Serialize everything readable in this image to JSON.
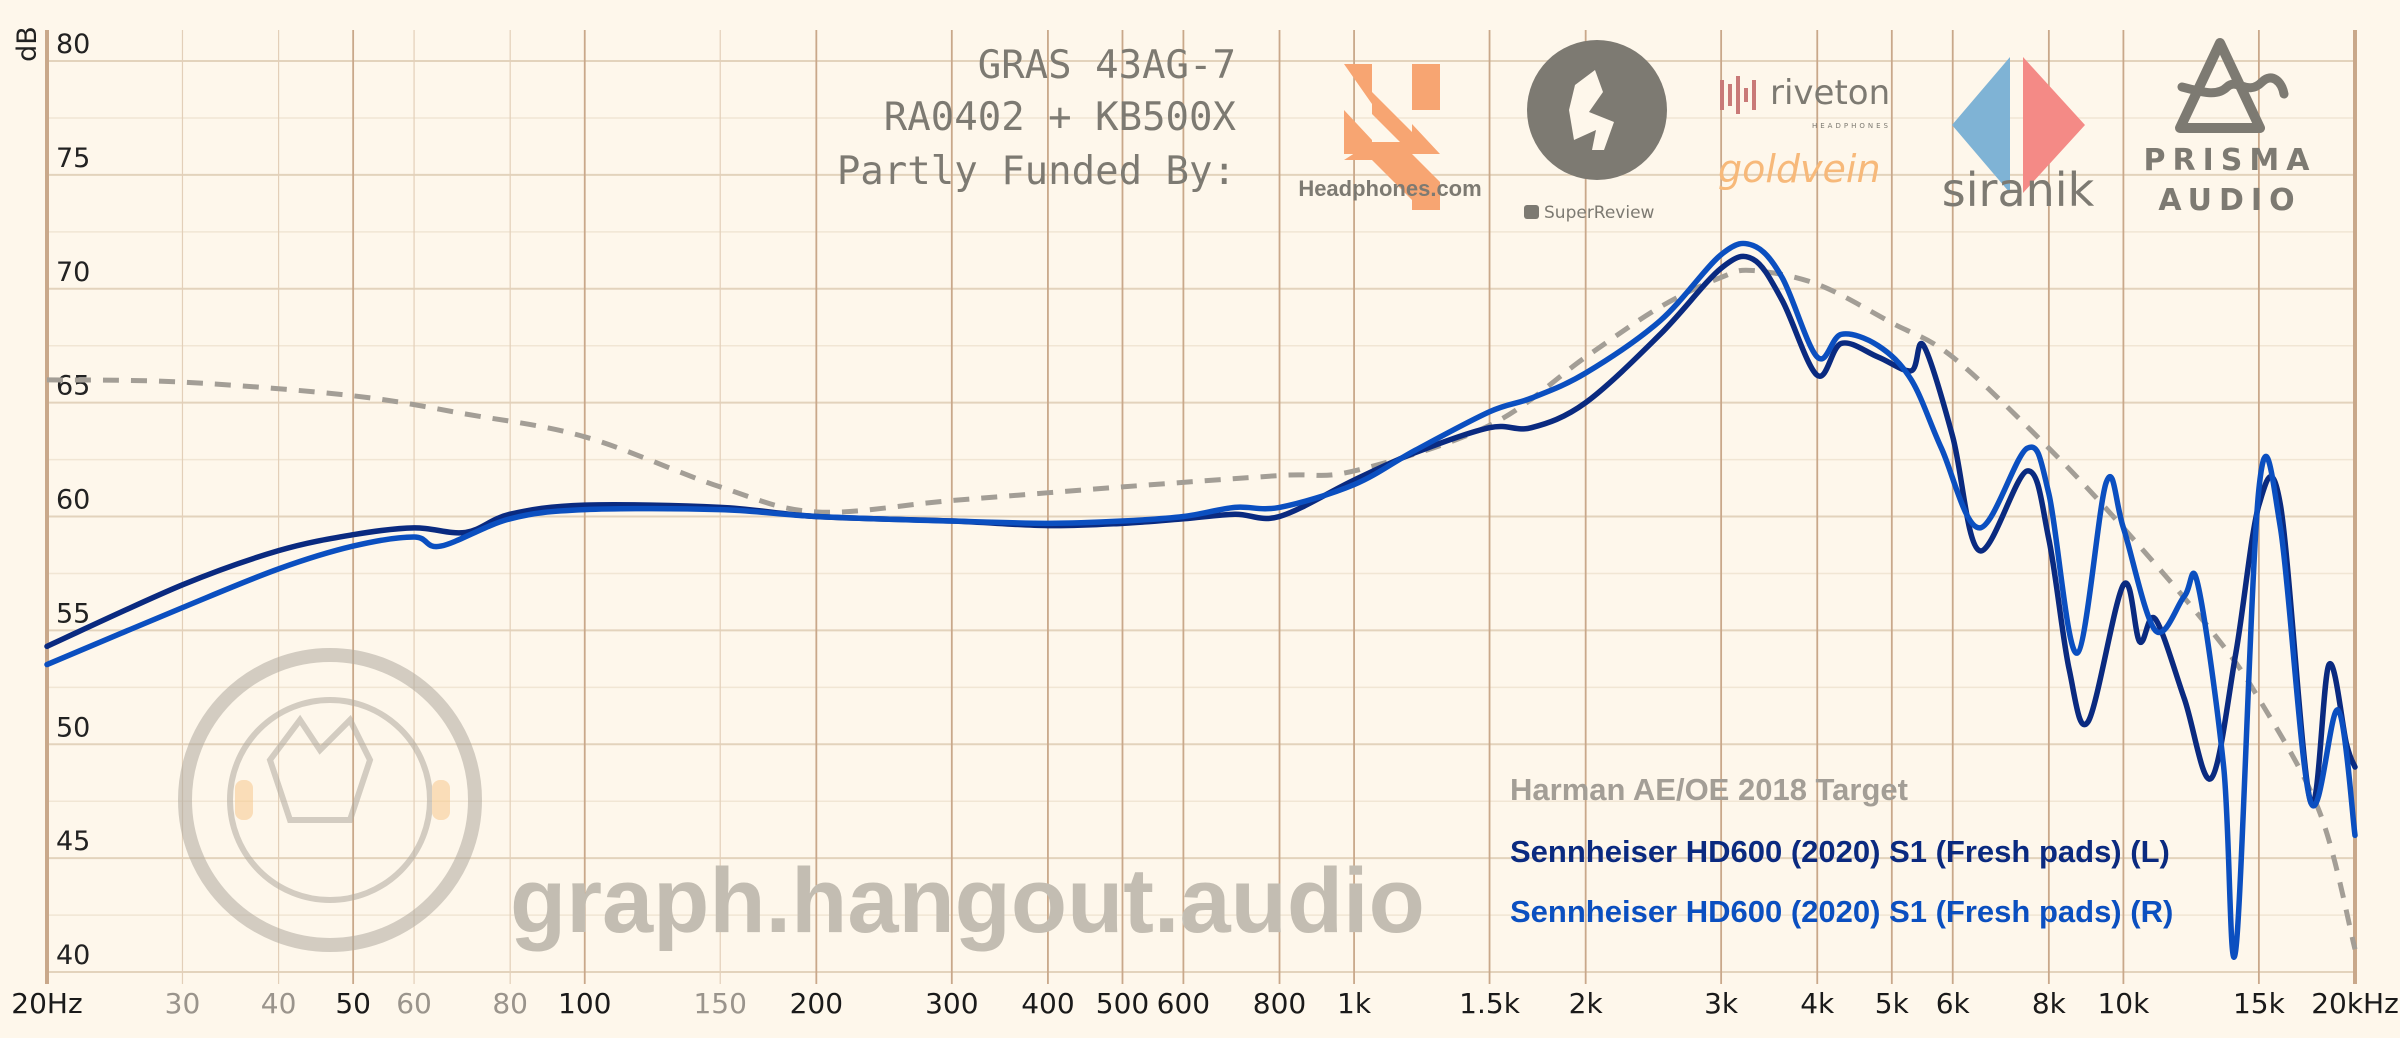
{
  "header": {
    "lines": [
      "GRAS 43AG-7",
      "RA0402 + KB500X",
      "Partly Funded By:"
    ]
  },
  "sponsors": [
    {
      "name": "Headphones.com",
      "icon": "headphones-com-logo",
      "color": "#f7a572"
    },
    {
      "name": "SuperReview",
      "icon": "superreview-logo",
      "color": "#7d7a72"
    },
    {
      "name": "riveton",
      "sub": "HEADPHONES",
      "icon": "riveton-logo",
      "color": "#c97a78"
    },
    {
      "name": "goldvein",
      "icon": "goldvein-logo",
      "color": "#f7b97a"
    },
    {
      "name": "siranik",
      "icon": "siranik-logo",
      "colors": [
        "#7fb3d5",
        "#f48a86"
      ]
    },
    {
      "name": "PRISMA AUDIO",
      "icon": "prisma-audio-logo",
      "color": "#7d7a72"
    }
  ],
  "watermark": {
    "text": "graph.hangout.audio",
    "logo": "The Hangout by CRINACLE"
  },
  "chart_data": {
    "type": "line",
    "xscale": "log",
    "xlim": [
      20,
      20000
    ],
    "ylim": [
      40,
      80
    ],
    "ylabel": "dB",
    "grid": true,
    "legend_placement": "bottom-right",
    "yticks": [
      40,
      45,
      50,
      55,
      60,
      65,
      70,
      75,
      80
    ],
    "xticks": [
      {
        "f": 20,
        "label": "20Hz",
        "major": true
      },
      {
        "f": 30,
        "label": "30",
        "major": false
      },
      {
        "f": 40,
        "label": "40",
        "major": false
      },
      {
        "f": 50,
        "label": "50",
        "major": true
      },
      {
        "f": 60,
        "label": "60",
        "major": false
      },
      {
        "f": 80,
        "label": "80",
        "major": false
      },
      {
        "f": 100,
        "label": "100",
        "major": true
      },
      {
        "f": 150,
        "label": "150",
        "major": false
      },
      {
        "f": 200,
        "label": "200",
        "major": true
      },
      {
        "f": 300,
        "label": "300",
        "major": true
      },
      {
        "f": 400,
        "label": "400",
        "major": true
      },
      {
        "f": 500,
        "label": "500",
        "major": true
      },
      {
        "f": 600,
        "label": "600",
        "major": true
      },
      {
        "f": 800,
        "label": "800",
        "major": true
      },
      {
        "f": 1000,
        "label": "1k",
        "major": true
      },
      {
        "f": 1500,
        "label": "1.5k",
        "major": true
      },
      {
        "f": 2000,
        "label": "2k",
        "major": true
      },
      {
        "f": 3000,
        "label": "3k",
        "major": true
      },
      {
        "f": 4000,
        "label": "4k",
        "major": true
      },
      {
        "f": 5000,
        "label": "5k",
        "major": true
      },
      {
        "f": 6000,
        "label": "6k",
        "major": true
      },
      {
        "f": 8000,
        "label": "8k",
        "major": true
      },
      {
        "f": 10000,
        "label": "10k",
        "major": true
      },
      {
        "f": 15000,
        "label": "15k",
        "major": true
      },
      {
        "f": 20000,
        "label": "20kHz",
        "major": true
      }
    ],
    "series": [
      {
        "name": "Harman AE/OE 2018 Target",
        "color": "#a39e96",
        "dashed": true,
        "x": [
          20,
          30,
          50,
          70,
          100,
          150,
          200,
          300,
          500,
          800,
          1000,
          1500,
          2000,
          2500,
          3000,
          3300,
          4000,
          5000,
          6000,
          8000,
          10000,
          13000,
          15000,
          18000,
          20000
        ],
        "y": [
          66,
          65.9,
          65.3,
          64.5,
          63.5,
          61.3,
          60.2,
          60.7,
          61.3,
          61.8,
          62,
          64,
          67,
          69.2,
          70.5,
          70.8,
          70.2,
          68.5,
          67,
          63,
          59.5,
          55,
          52,
          47,
          41
        ]
      },
      {
        "name": "Sennheiser HD600 (2020) S1 (Fresh pads) (L)",
        "color": "#0a2a80",
        "x": [
          20,
          30,
          40,
          50,
          60,
          70,
          80,
          100,
          150,
          200,
          300,
          400,
          500,
          600,
          700,
          800,
          1000,
          1200,
          1500,
          1700,
          2000,
          2500,
          3000,
          3300,
          3600,
          4000,
          4300,
          4800,
          5300,
          5500,
          6000,
          6500,
          7500,
          8000,
          8500,
          9000,
          10000,
          10500,
          11000,
          12000,
          13000,
          14000,
          15000,
          16000,
          17500,
          18500,
          19500,
          20000
        ],
        "y": [
          54.3,
          57,
          58.5,
          59.2,
          59.5,
          59.3,
          60.1,
          60.5,
          60.4,
          60,
          59.8,
          59.6,
          59.7,
          59.9,
          60.1,
          60,
          61.6,
          62.8,
          63.9,
          63.9,
          65,
          68,
          70.9,
          71.3,
          69.5,
          66.2,
          67.6,
          67,
          66.4,
          67.5,
          63.5,
          58.5,
          62,
          59,
          53.3,
          51,
          57,
          54.5,
          55.5,
          52,
          48.5,
          54,
          60.5,
          60.5,
          47.5,
          53.5,
          50,
          49
        ]
      },
      {
        "name": "Sennheiser HD600 (2020) S1 (Fresh pads) (R)",
        "color": "#0b4fc0",
        "x": [
          20,
          30,
          40,
          50,
          60,
          65,
          80,
          100,
          150,
          200,
          300,
          400,
          500,
          600,
          700,
          800,
          1000,
          1200,
          1500,
          1700,
          2000,
          2500,
          3000,
          3300,
          3600,
          4000,
          4300,
          4800,
          5300,
          5800,
          6500,
          7500,
          8000,
          8700,
          9500,
          10000,
          11000,
          12000,
          12500,
          13500,
          14000,
          15000,
          16000,
          17500,
          19000,
          20000
        ],
        "y": [
          53.5,
          56,
          57.7,
          58.7,
          59.1,
          58.7,
          59.9,
          60.3,
          60.3,
          60,
          59.8,
          59.7,
          59.8,
          60,
          60.4,
          60.4,
          61.4,
          62.9,
          64.6,
          65.2,
          66.3,
          68.6,
          71.5,
          71.9,
          70.5,
          67,
          68,
          67.5,
          66,
          63,
          59.5,
          63,
          61,
          54,
          61.5,
          59.5,
          55,
          56.5,
          57,
          49,
          41,
          61.2,
          59.5,
          47.5,
          51.5,
          46
        ]
      }
    ]
  }
}
